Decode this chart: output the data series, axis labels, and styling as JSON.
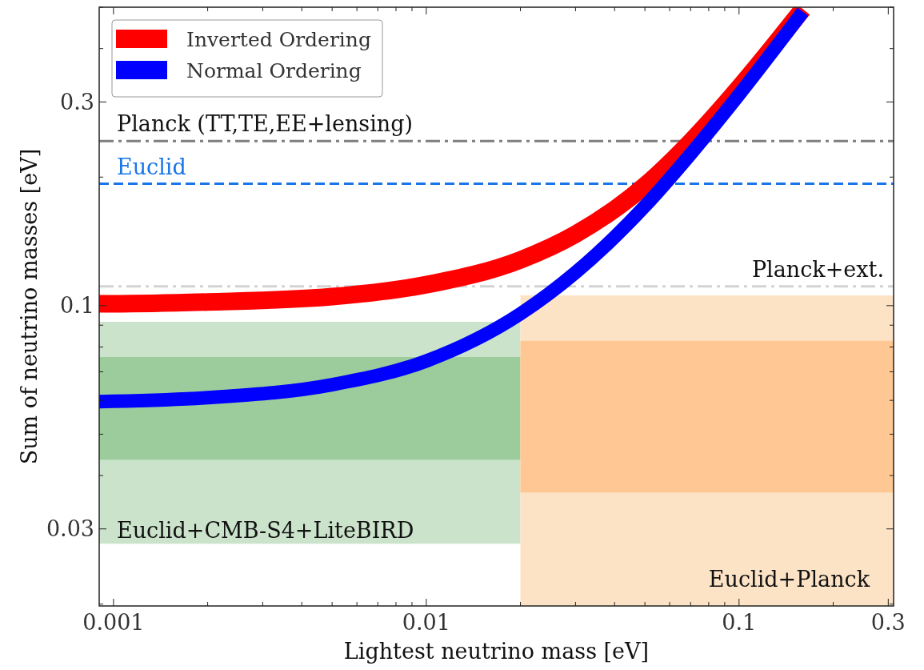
{
  "chart_data": {
    "type": "line",
    "xlabel": "Lightest neutrino mass [eV]",
    "ylabel": "Sum of neutrino masses [eV]",
    "log": "xy",
    "xlim": [
      0.0009,
      0.312
    ],
    "ylim": [
      0.0198,
      0.5
    ],
    "xticks": [
      0.001,
      {
        "value": 0.002,
        "label": null
      },
      {
        "value": 0.003,
        "label": null
      },
      {
        "value": 0.004,
        "label": null
      },
      {
        "value": 0.005,
        "label": null
      },
      {
        "value": 0.006,
        "label": null
      },
      {
        "value": 0.007,
        "label": null
      },
      {
        "value": 0.008,
        "label": null
      },
      {
        "value": 0.009,
        "label": null
      },
      0.01,
      {
        "value": 0.02,
        "label": null
      },
      {
        "value": 0.03,
        "label": null
      },
      {
        "value": 0.04,
        "label": null
      },
      {
        "value": 0.05,
        "label": null
      },
      {
        "value": 0.06,
        "label": null
      },
      {
        "value": 0.07,
        "label": null
      },
      {
        "value": 0.08,
        "label": null
      },
      {
        "value": 0.09,
        "label": null
      },
      0.1,
      {
        "value": 0.2,
        "label": null
      },
      0.3
    ],
    "yticks": [
      {
        "value": 0.02,
        "label": null
      },
      0.03,
      {
        "value": 0.04,
        "label": null
      },
      {
        "value": 0.05,
        "label": null
      },
      {
        "value": 0.06,
        "label": null
      },
      {
        "value": 0.07,
        "label": null
      },
      {
        "value": 0.08,
        "label": null
      },
      {
        "value": 0.09,
        "label": null
      },
      0.1,
      {
        "value": 0.2,
        "label": null
      },
      0.3,
      {
        "value": 0.4,
        "label": null
      },
      {
        "value": 0.5,
        "label": null
      }
    ],
    "grid": false,
    "legend": "top left",
    "series": [
      {
        "color": "#cbe3cb",
        "x": [
          0.0009,
          0.02
        ],
        "values": [
          null,
          null
        ],
        "lower": [
          0.0277,
          0.0277
        ],
        "upper": [
          0.0917,
          0.0917
        ]
      },
      {
        "color": "#9ccc9c",
        "x": [
          0.0009,
          0.02
        ],
        "values": [
          null,
          null
        ],
        "lower": [
          0.0436,
          0.0436
        ],
        "upper": [
          0.0758,
          0.0758
        ]
      },
      {
        "color": "#fde3c6",
        "x": [
          0.02,
          0.312
        ],
        "values": [
          null,
          null
        ],
        "lower": [
          0.0198,
          0.0198
        ],
        "upper": [
          0.1057,
          0.1057
        ]
      },
      {
        "color": "#fec794",
        "x": [
          0.02,
          0.312
        ],
        "values": [
          null,
          null
        ],
        "lower": [
          0.0365,
          0.0365
        ],
        "upper": [
          0.0827,
          0.0827
        ]
      },
      {
        "name": "Inverted Ordering",
        "color": "#ff0000",
        "x": [
          0.0009,
          0.001,
          0.002,
          0.005,
          0.01,
          0.02,
          0.03,
          0.05,
          0.07,
          0.1,
          0.13,
          0.16
        ],
        "values": [
          0.101,
          0.101,
          0.102,
          0.105,
          0.112,
          0.128,
          0.147,
          0.191,
          0.242,
          0.324,
          0.409,
          0.495
        ]
      },
      {
        "name": "Normal Ordering",
        "color": "#0000ff",
        "x": [
          0.0009,
          0.001,
          0.002,
          0.005,
          0.01,
          0.02,
          0.03,
          0.05,
          0.07,
          0.1,
          0.13,
          0.16
        ],
        "values": [
          0.0596,
          0.0597,
          0.0609,
          0.0653,
          0.0742,
          0.0957,
          0.1195,
          0.171,
          0.2265,
          0.312,
          0.3996,
          0.488
        ]
      }
    ],
    "ref_lines": [
      {
        "axis": "y",
        "value": 0.243,
        "label": "Planck (TT,TE,EE+lensing)",
        "color": "#808080",
        "line_style": "dashdot"
      },
      {
        "axis": "y",
        "value": 0.193,
        "label": "Euclid",
        "color": "#1a75e8",
        "line_style": "dashed"
      },
      {
        "axis": "y",
        "value": 0.111,
        "label": "Planck+ext.",
        "color": "#d3d3d3",
        "line_style": "dashdot"
      }
    ],
    "annotations": [
      "Euclid+CMB-S4+LiteBIRD",
      "Euclid+Planck"
    ]
  }
}
